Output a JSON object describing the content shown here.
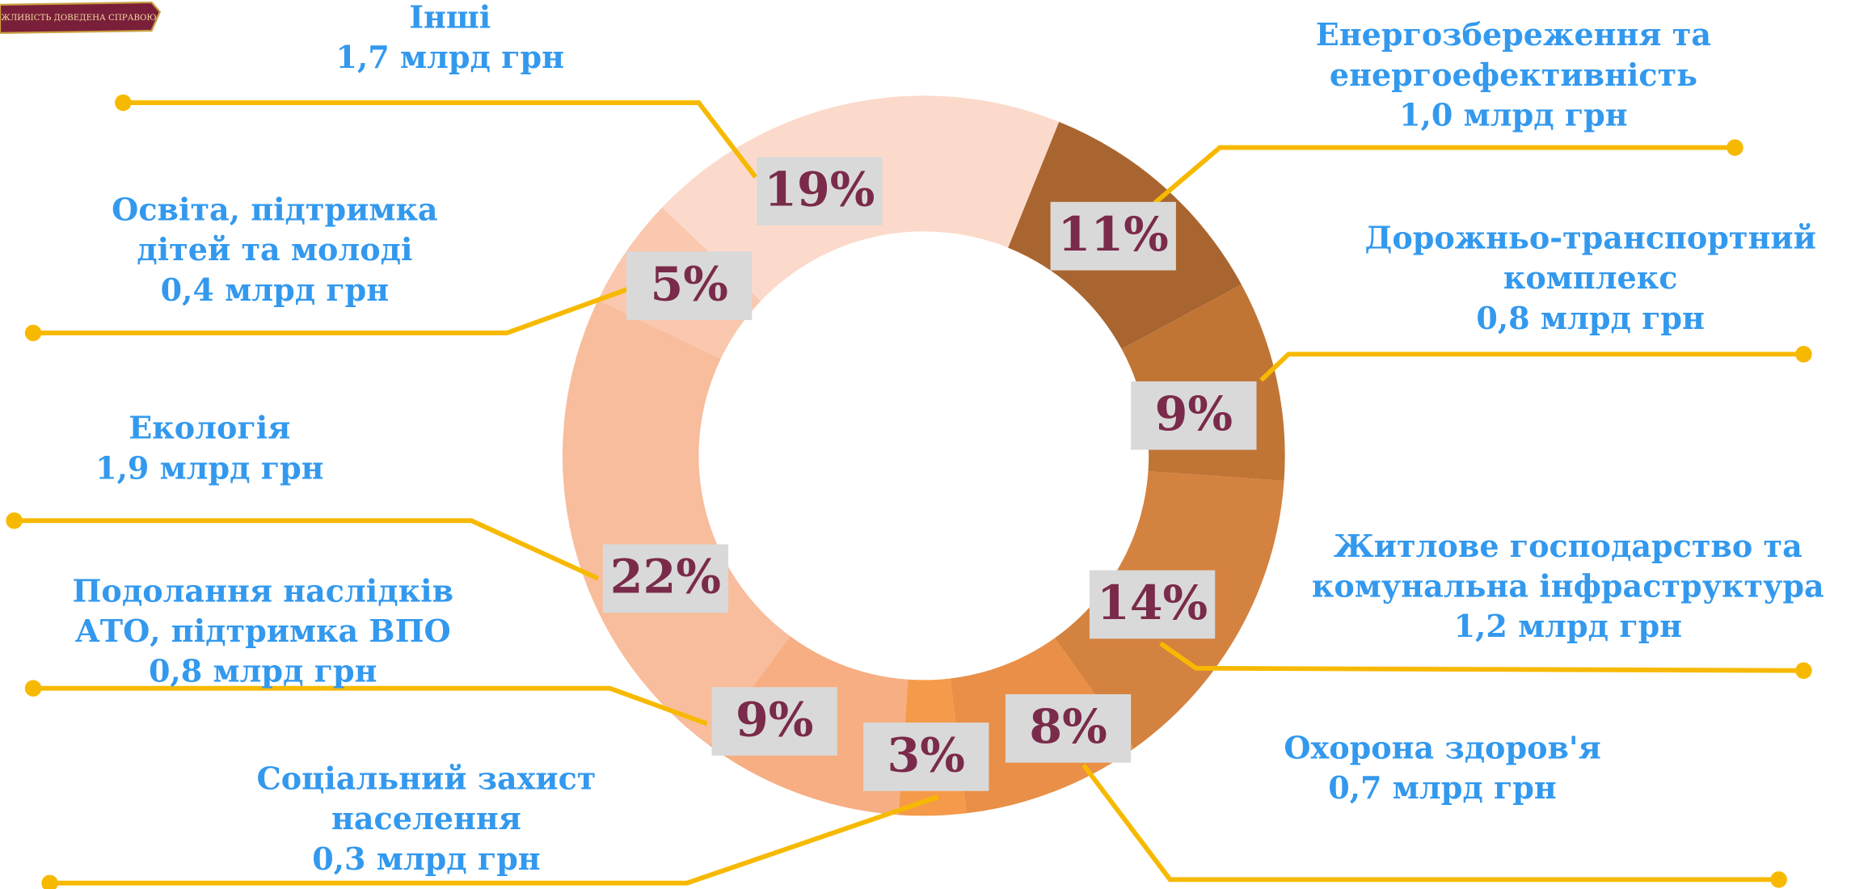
{
  "logo": "МОЖЛИВІСТЬ ДОВЕДЕНА СПРАВОЮ",
  "chart_data": {
    "type": "donut",
    "categories": [
      [
        "Енергозбереження та",
        "енергоефективність"
      ],
      [
        "Дорожньо-транспортний",
        "комплекс"
      ],
      [
        "Житлове господарство та",
        "комунальна інфраструктура"
      ],
      [
        "Охорона здоров'я"
      ],
      [
        "Соціальний захист",
        "населення"
      ],
      [
        "Подолання наслідків",
        "АТО, підтримка ВПО"
      ],
      [
        "Екологія"
      ],
      [
        "Освіта, підтримка",
        "дітей та молоді"
      ],
      [
        "Інші"
      ]
    ],
    "amount_labels": [
      "1,0 млрд грн",
      "0,8 млрд грн",
      "1,2 млрд грн",
      "0,7 млрд грн",
      "0,3 млрд грн",
      "0,8 млрд грн",
      "1,9 млрд грн",
      "0,4 млрд грн",
      "1,7 млрд грн"
    ],
    "values": [
      11,
      9,
      14,
      8,
      3,
      9,
      22,
      5,
      19
    ],
    "value_labels": [
      "11%",
      "9%",
      "14%",
      "8%",
      "3%",
      "9%",
      "22%",
      "5%",
      "19%"
    ],
    "colors": [
      "#a9652f",
      "#c07535",
      "#d4823f",
      "#e98f47",
      "#f59a4a",
      "#f6ae82",
      "#f8bd9c",
      "#f9c8ae",
      "#fcdacb"
    ]
  }
}
